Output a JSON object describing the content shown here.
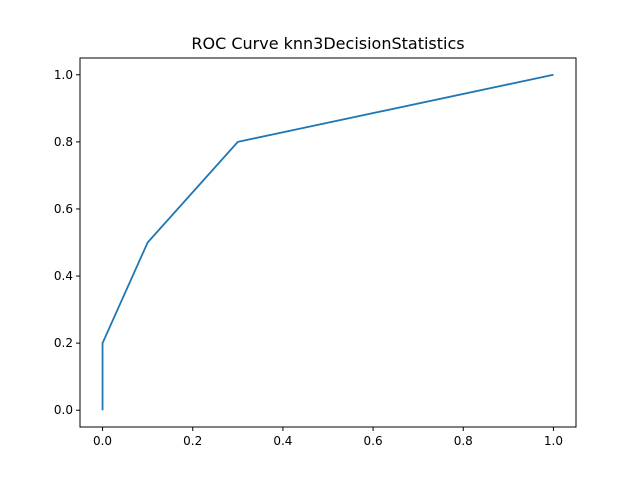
{
  "chart_data": {
    "type": "line",
    "title": "ROC Curve knn3DecisionStatistics",
    "xlabel": "",
    "ylabel": "",
    "xlim": [
      -0.05,
      1.05
    ],
    "ylim": [
      -0.05,
      1.05
    ],
    "x_ticks": [
      0.0,
      0.2,
      0.4,
      0.6,
      0.8,
      1.0
    ],
    "x_tick_labels": [
      "0.0",
      "0.2",
      "0.4",
      "0.6",
      "0.8",
      "1.0"
    ],
    "y_ticks": [
      0.0,
      0.2,
      0.4,
      0.6,
      0.8,
      1.0
    ],
    "y_tick_labels": [
      "0.0",
      "0.2",
      "0.4",
      "0.6",
      "0.8",
      "1.0"
    ],
    "grid": false,
    "series": [
      {
        "x": [
          0.0,
          0.0,
          0.1,
          0.3,
          1.0
        ],
        "y": [
          0.0,
          0.2,
          0.5,
          0.8,
          1.0
        ],
        "color": "#1f77b4"
      }
    ]
  }
}
